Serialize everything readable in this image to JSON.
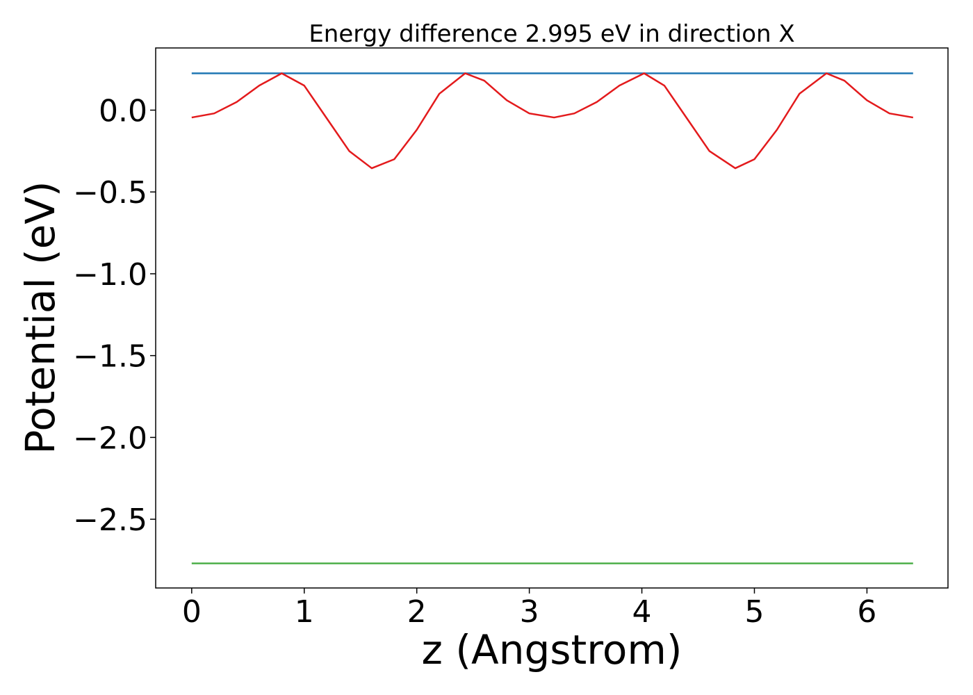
{
  "chart_data": {
    "type": "line",
    "title": "Energy difference 2.995 eV in direction X",
    "xlabel": "z (Angstrom)",
    "ylabel": "Potential (eV)",
    "xlim": [
      -0.32,
      6.72
    ],
    "ylim": [
      -2.92,
      0.38
    ],
    "xticks": [
      0,
      1,
      2,
      3,
      4,
      5,
      6
    ],
    "xtick_labels": [
      "0",
      "1",
      "2",
      "3",
      "4",
      "5",
      "6"
    ],
    "yticks": [
      0.0,
      -0.5,
      -1.0,
      -1.5,
      -2.0,
      -2.5
    ],
    "ytick_labels": [
      "0.0",
      "−0.5",
      "−1.0",
      "−1.5",
      "−2.0",
      "−2.5"
    ],
    "grid": false,
    "legend": "none",
    "series": [
      {
        "color": "#1f77b4",
        "x": [
          0,
          6.41
        ],
        "y": [
          0.225,
          0.225
        ]
      },
      {
        "color": "#e31a1c",
        "x": [
          0.0,
          0.2,
          0.4,
          0.6,
          0.8,
          1.0,
          1.2,
          1.4,
          1.6,
          1.8,
          2.0,
          2.2,
          2.43,
          2.6,
          2.8,
          3.0,
          3.22,
          3.4,
          3.6,
          3.8,
          4.02,
          4.2,
          4.4,
          4.6,
          4.83,
          5.0,
          5.2,
          5.4,
          5.64,
          5.8,
          6.0,
          6.2,
          6.41
        ],
        "y": [
          -0.045,
          -0.02,
          0.05,
          0.15,
          0.225,
          0.15,
          -0.05,
          -0.25,
          -0.355,
          -0.3,
          -0.12,
          0.1,
          0.225,
          0.18,
          0.06,
          -0.02,
          -0.045,
          -0.02,
          0.05,
          0.15,
          0.225,
          0.15,
          -0.05,
          -0.25,
          -0.355,
          -0.3,
          -0.12,
          0.1,
          0.225,
          0.18,
          0.06,
          -0.02,
          -0.045
        ]
      },
      {
        "color": "#4daf4a",
        "x": [
          0,
          6.41
        ],
        "y": [
          -2.77,
          -2.77
        ]
      }
    ]
  }
}
